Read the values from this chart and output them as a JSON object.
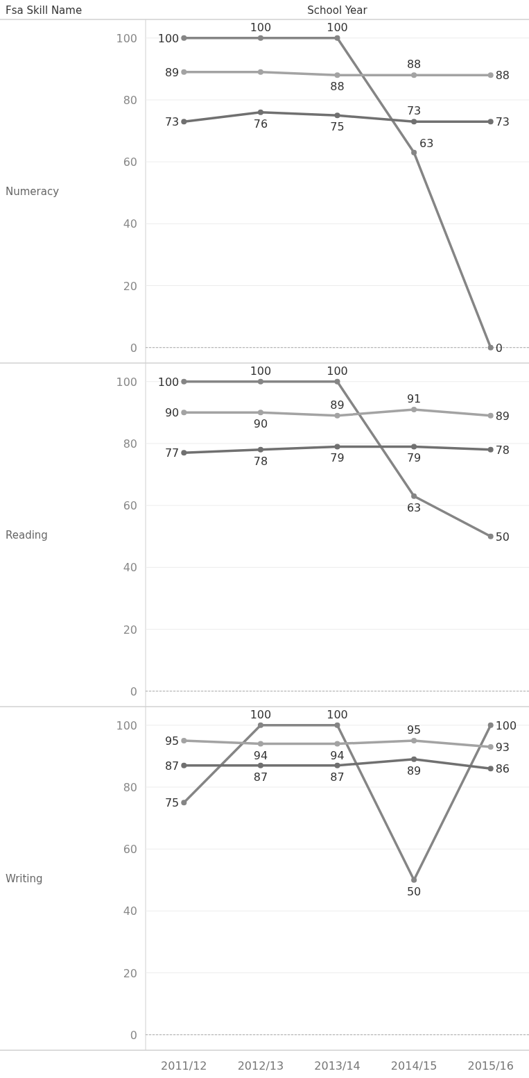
{
  "chart_data": [
    {
      "type": "line",
      "xlabel": "School Year",
      "ylabel": "Numeracy",
      "annotations": [
        "Fsa Skill Name"
      ],
      "ylim": [
        -5,
        106
      ],
      "yticks": [
        0,
        20,
        40,
        60,
        80,
        100
      ],
      "grid": "y",
      "marker": "circle",
      "tick_labels": "y",
      "ref_lines": [
        {
          "axis": "y",
          "value": 0,
          "line_style": "dashed"
        }
      ],
      "series": [
        {
          "color": "#858585",
          "values": [
            100,
            100,
            100,
            63,
            0
          ],
          "value_labels": [
            "100",
            "100",
            "100",
            "63",
            "0"
          ]
        },
        {
          "color": "#a3a3a3",
          "values": [
            89,
            89,
            88,
            88,
            88
          ],
          "value_labels": [
            "89",
            null,
            "88",
            "88",
            "88"
          ]
        },
        {
          "color": "#707070",
          "values": [
            73,
            76,
            75,
            73,
            73
          ],
          "value_labels": [
            "73",
            "76",
            "75",
            "73",
            "73"
          ]
        }
      ]
    },
    {
      "type": "line",
      "ylabel": "Reading",
      "ylim": [
        -5,
        106
      ],
      "yticks": [
        0,
        20,
        40,
        60,
        80,
        100
      ],
      "grid": "y",
      "marker": "circle",
      "tick_labels": "y",
      "ref_lines": [
        {
          "axis": "y",
          "value": 0,
          "line_style": "dashed"
        }
      ],
      "series": [
        {
          "color": "#858585",
          "values": [
            100,
            100,
            100,
            63,
            50
          ],
          "value_labels": [
            "100",
            "100",
            "100",
            "63",
            "50"
          ]
        },
        {
          "color": "#a3a3a3",
          "values": [
            90,
            90,
            89,
            91,
            89
          ],
          "value_labels": [
            "90",
            "90",
            "89",
            "91",
            "89"
          ]
        },
        {
          "color": "#707070",
          "values": [
            77,
            78,
            79,
            79,
            78
          ],
          "value_labels": [
            "77",
            "78",
            "79",
            "79",
            "78"
          ]
        }
      ]
    },
    {
      "type": "line",
      "ylabel": "Writing",
      "categories": [
        "2011/12",
        "2012/13",
        "2013/14",
        "2014/15",
        "2015/16"
      ],
      "ylim": [
        -5,
        106
      ],
      "yticks": [
        0,
        20,
        40,
        60,
        80,
        100
      ],
      "grid": "y",
      "marker": "circle",
      "ref_lines": [
        {
          "axis": "y",
          "value": 0,
          "line_style": "dashed"
        }
      ],
      "series": [
        {
          "color": "#858585",
          "values": [
            75,
            100,
            100,
            50,
            100
          ],
          "value_labels": [
            "75",
            "100",
            "100",
            "50",
            "100"
          ]
        },
        {
          "color": "#a3a3a3",
          "values": [
            95,
            94,
            94,
            95,
            93
          ],
          "value_labels": [
            "95",
            "94",
            "94",
            "95",
            "93"
          ]
        },
        {
          "color": "#707070",
          "values": [
            87,
            87,
            87,
            89,
            86
          ],
          "value_labels": [
            "87",
            "87",
            "87",
            "89",
            "86"
          ]
        }
      ]
    }
  ]
}
